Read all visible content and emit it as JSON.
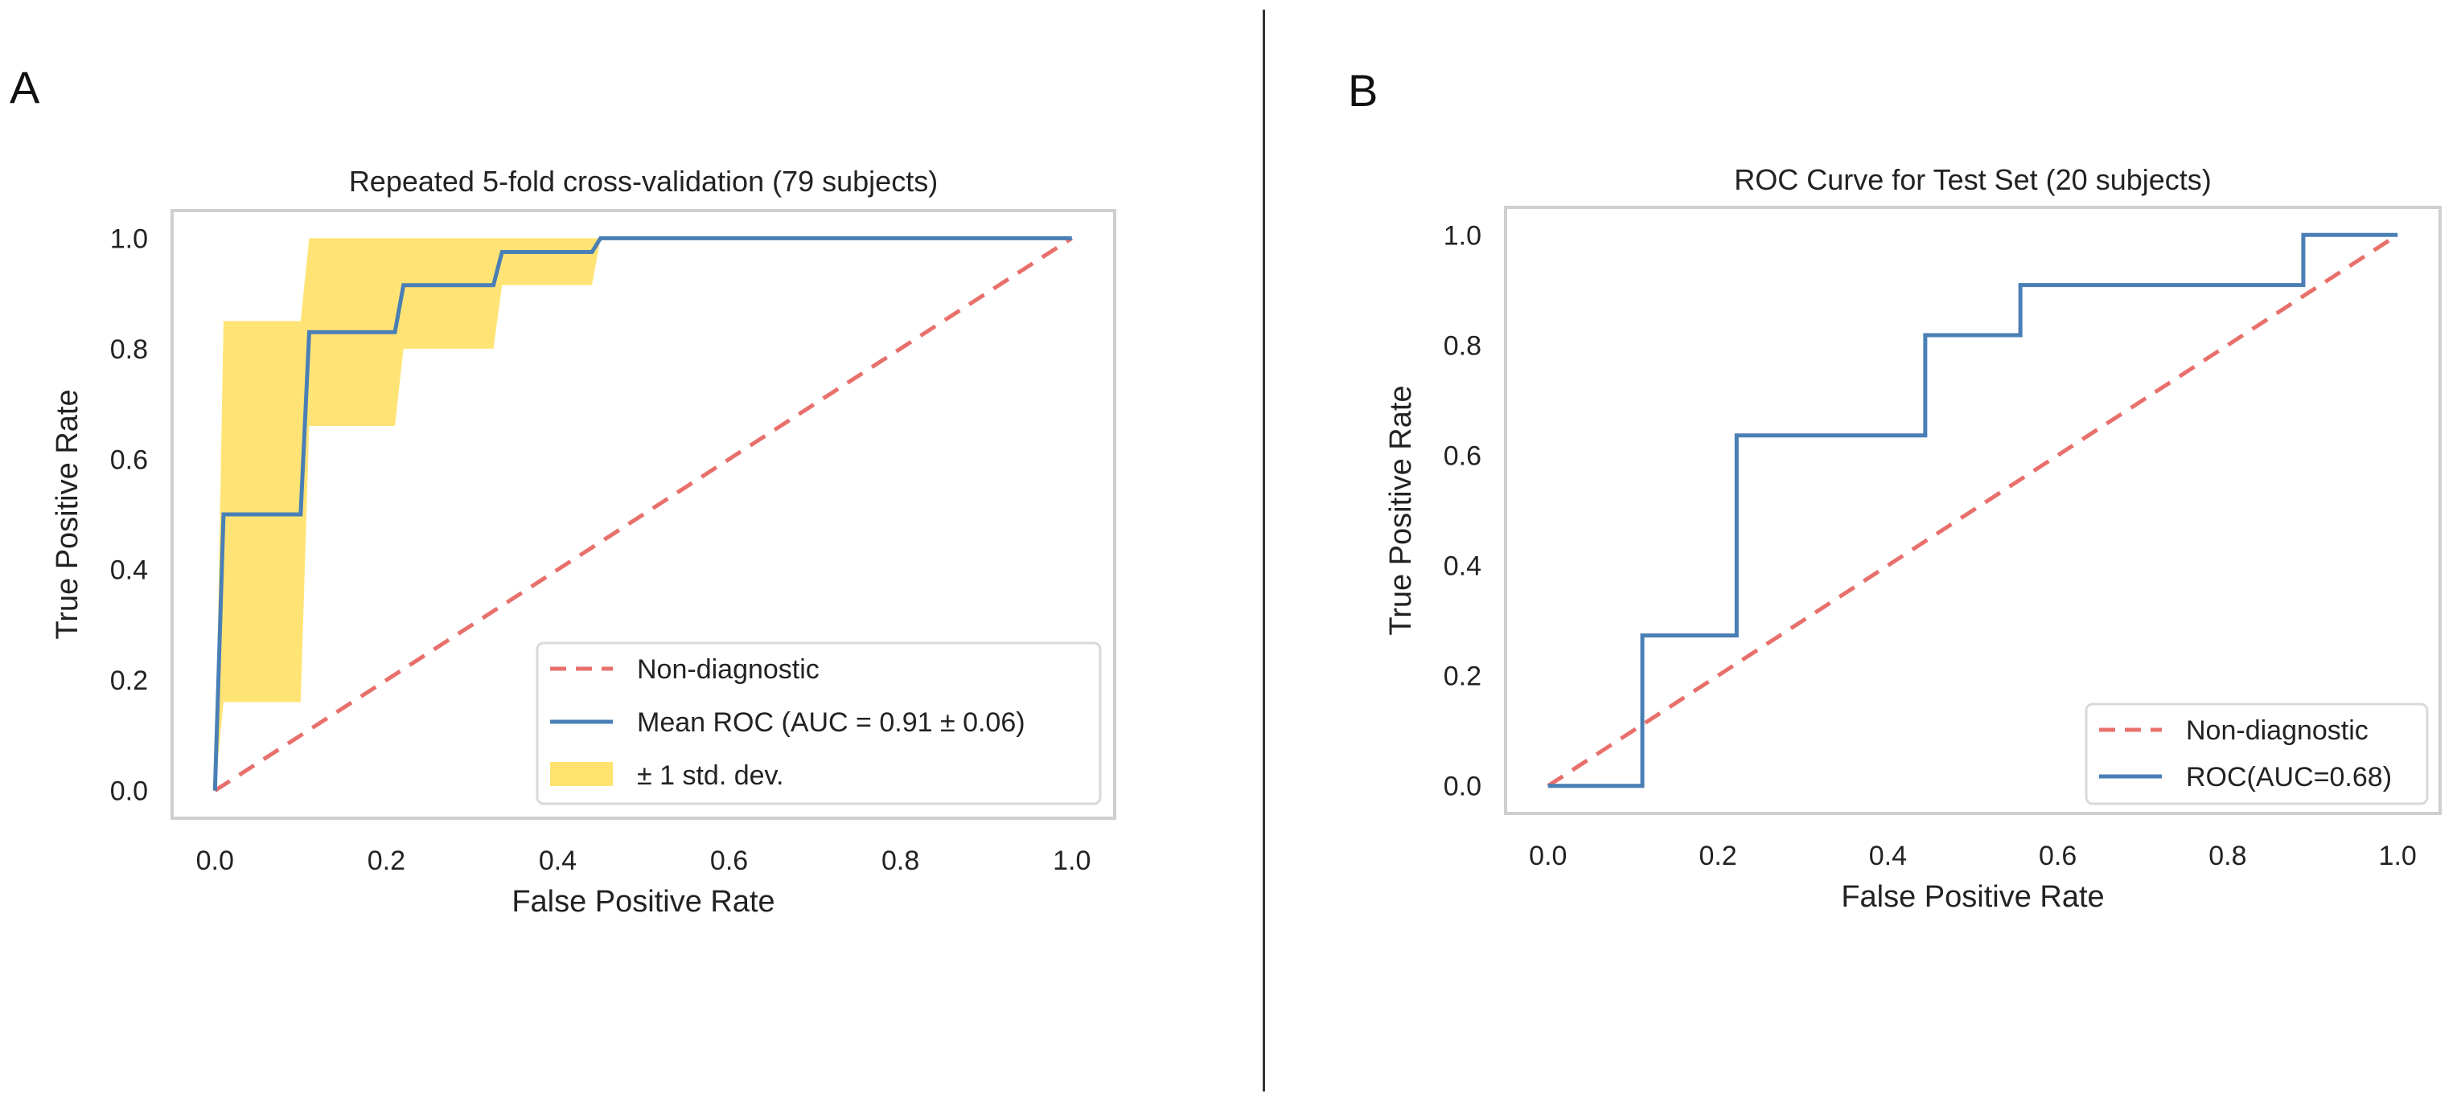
{
  "panels": {
    "a_label": "A",
    "b_label": "B"
  },
  "chart_data": [
    {
      "type": "line",
      "panel": "A",
      "title": "Repeated 5-fold cross-validation (79 subjects)",
      "xlabel": "False Positive Rate",
      "ylabel": "True Positive Rate",
      "xlim": [
        -0.05,
        1.05
      ],
      "ylim": [
        -0.05,
        1.05
      ],
      "xticks": [
        "0.0",
        "0.2",
        "0.4",
        "0.6",
        "0.8",
        "1.0"
      ],
      "yticks": [
        "0.0",
        "0.2",
        "0.4",
        "0.6",
        "0.8",
        "1.0"
      ],
      "grid": false,
      "legend_position": "lower-right",
      "series": [
        {
          "name": "Non-diagnostic",
          "style": "dashed",
          "color": "#e8706c",
          "x": [
            0,
            1
          ],
          "y": [
            0,
            1
          ]
        },
        {
          "name": "Mean ROC (AUC = 0.91 ± 0.06)",
          "style": "solid",
          "color": "#4a7fb5",
          "x": [
            0,
            0.01,
            0.1,
            0.11,
            0.21,
            0.22,
            0.325,
            0.335,
            0.44,
            0.45,
            1.0
          ],
          "y": [
            0,
            0.5,
            0.5,
            0.83,
            0.83,
            0.915,
            0.915,
            0.975,
            0.975,
            1.0,
            1.0
          ]
        }
      ],
      "band": {
        "name": "± 1 std. dev.",
        "color": "#ffe36e",
        "x": [
          0,
          0.01,
          0.1,
          0.11,
          0.21,
          0.22,
          0.325,
          0.335,
          0.44,
          0.45,
          1.0
        ],
        "upper": [
          0,
          0.85,
          0.85,
          1.0,
          1.0,
          1.0,
          1.0,
          1.0,
          1.0,
          1.0,
          1.0
        ],
        "lower": [
          0,
          0.16,
          0.16,
          0.66,
          0.66,
          0.8,
          0.8,
          0.915,
          0.915,
          1.0,
          1.0
        ]
      }
    },
    {
      "type": "line",
      "panel": "B",
      "title": "ROC Curve for Test Set (20 subjects)",
      "xlabel": "False Positive Rate",
      "ylabel": "True Positive Rate",
      "xlim": [
        -0.05,
        1.05
      ],
      "ylim": [
        -0.05,
        1.05
      ],
      "xticks": [
        "0.0",
        "0.2",
        "0.4",
        "0.6",
        "0.8",
        "1.0"
      ],
      "yticks": [
        "0.0",
        "0.2",
        "0.4",
        "0.6",
        "0.8",
        "1.0"
      ],
      "grid": false,
      "legend_position": "lower-right",
      "series": [
        {
          "name": "Non-diagnostic",
          "style": "dashed",
          "color": "#e8706c",
          "x": [
            0,
            1
          ],
          "y": [
            0,
            1
          ]
        },
        {
          "name": "ROC(AUC=0.68)",
          "style": "solid",
          "color": "#4a7fb5",
          "x": [
            0,
            0.111,
            0.111,
            0.222,
            0.222,
            0.444,
            0.444,
            0.556,
            0.556,
            0.889,
            0.889,
            1.0
          ],
          "y": [
            0,
            0,
            0.273,
            0.273,
            0.636,
            0.636,
            0.818,
            0.818,
            0.909,
            0.909,
            1.0,
            1.0
          ]
        }
      ]
    }
  ]
}
